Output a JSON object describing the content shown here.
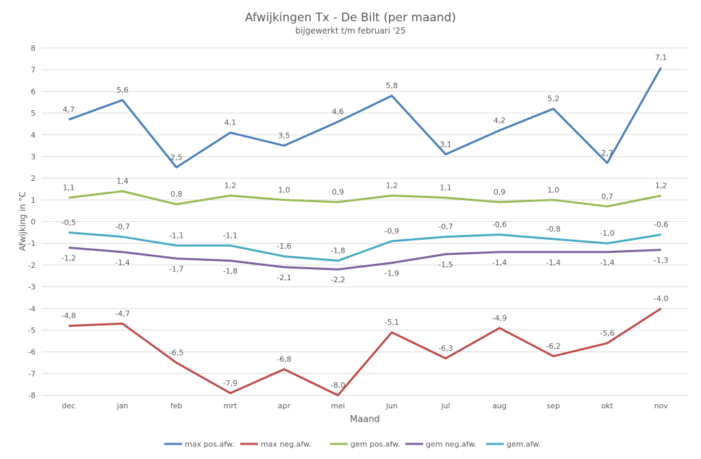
{
  "chart_data": {
    "type": "line",
    "title": "Afwijkingen Tx - De Bilt (per maand)",
    "subtitle": "bijgewerkt t/m februari '25",
    "xlabel": "Maand",
    "ylabel": "Afwijking in °C",
    "ylim": [
      -8,
      8
    ],
    "yticks": [
      "8",
      "7",
      "6",
      "5",
      "4",
      "3",
      "2",
      "1",
      "0",
      "-1",
      "-2",
      "-3",
      "-4",
      "-5",
      "-6",
      "-7",
      "-8"
    ],
    "grid": true,
    "legend_position": "bottom",
    "categories": [
      "dec",
      "jan",
      "feb",
      "mrt",
      "apr",
      "mei",
      "jun",
      "jul",
      "aug",
      "sep",
      "okt",
      "nov"
    ],
    "series": [
      {
        "name": "max pos.afw.",
        "color": "#4a7ebb",
        "label_pos": "above",
        "values": [
          4.7,
          5.6,
          2.5,
          4.1,
          3.5,
          4.6,
          5.8,
          3.1,
          4.2,
          5.2,
          2.7,
          7.1
        ],
        "labels": [
          "4,7",
          "5,6",
          "2,5",
          "4,1",
          "3,5",
          "4,6",
          "5,8",
          "3,1",
          "4,2",
          "5,2",
          "2,7",
          "7,1"
        ]
      },
      {
        "name": "max neg.afw.",
        "color": "#be4b48",
        "label_pos": "above",
        "values": [
          -4.8,
          -4.7,
          -6.5,
          -7.9,
          -6.8,
          -8.0,
          -5.1,
          -6.3,
          -4.9,
          -6.2,
          -5.6,
          -4.0
        ],
        "labels": [
          "-4,8",
          "-4,7",
          "-6,5",
          "-7,9",
          "-6,8",
          "-8,0",
          "-5,1",
          "-6,3",
          "-4,9",
          "-6,2",
          "-5,6",
          "-4,0"
        ]
      },
      {
        "name": "gem pos.afw.",
        "color": "#98b954",
        "label_pos": "above",
        "values": [
          1.1,
          1.4,
          0.8,
          1.2,
          1.0,
          0.9,
          1.2,
          1.1,
          0.9,
          1.0,
          0.7,
          1.2
        ],
        "labels": [
          "1,1",
          "1,4",
          "0,8",
          "1,2",
          "1,0",
          "0,9",
          "1,2",
          "1,1",
          "0,9",
          "1,0",
          "0,7",
          "1,2"
        ]
      },
      {
        "name": "gem neg.afw.",
        "color": "#7d60a0",
        "label_pos": "below",
        "values": [
          -1.2,
          -1.4,
          -1.7,
          -1.8,
          -2.1,
          -2.2,
          -1.9,
          -1.5,
          -1.4,
          -1.4,
          -1.4,
          -1.3
        ],
        "labels": [
          "-1,2",
          "-1,4",
          "-1,7",
          "-1,8",
          "-2,1",
          "-2,2",
          "-1,9",
          "-1,5",
          "-1,4",
          "-1,4",
          "-1,4",
          "-1,3"
        ]
      },
      {
        "name": "gem.afw.",
        "color": "#46aac5",
        "label_pos": "above",
        "values": [
          -0.5,
          -0.7,
          -1.1,
          -1.1,
          -1.6,
          -1.8,
          -0.9,
          -0.7,
          -0.6,
          -0.8,
          -1.0,
          -0.6
        ],
        "labels": [
          "-0,5",
          "-0,7",
          "-1,1",
          "-1,1",
          "-1,6",
          "-1,8",
          "-0,9",
          "-0,7",
          "-0,6",
          "-0,8",
          "-1,0",
          "-0,6"
        ]
      }
    ]
  }
}
